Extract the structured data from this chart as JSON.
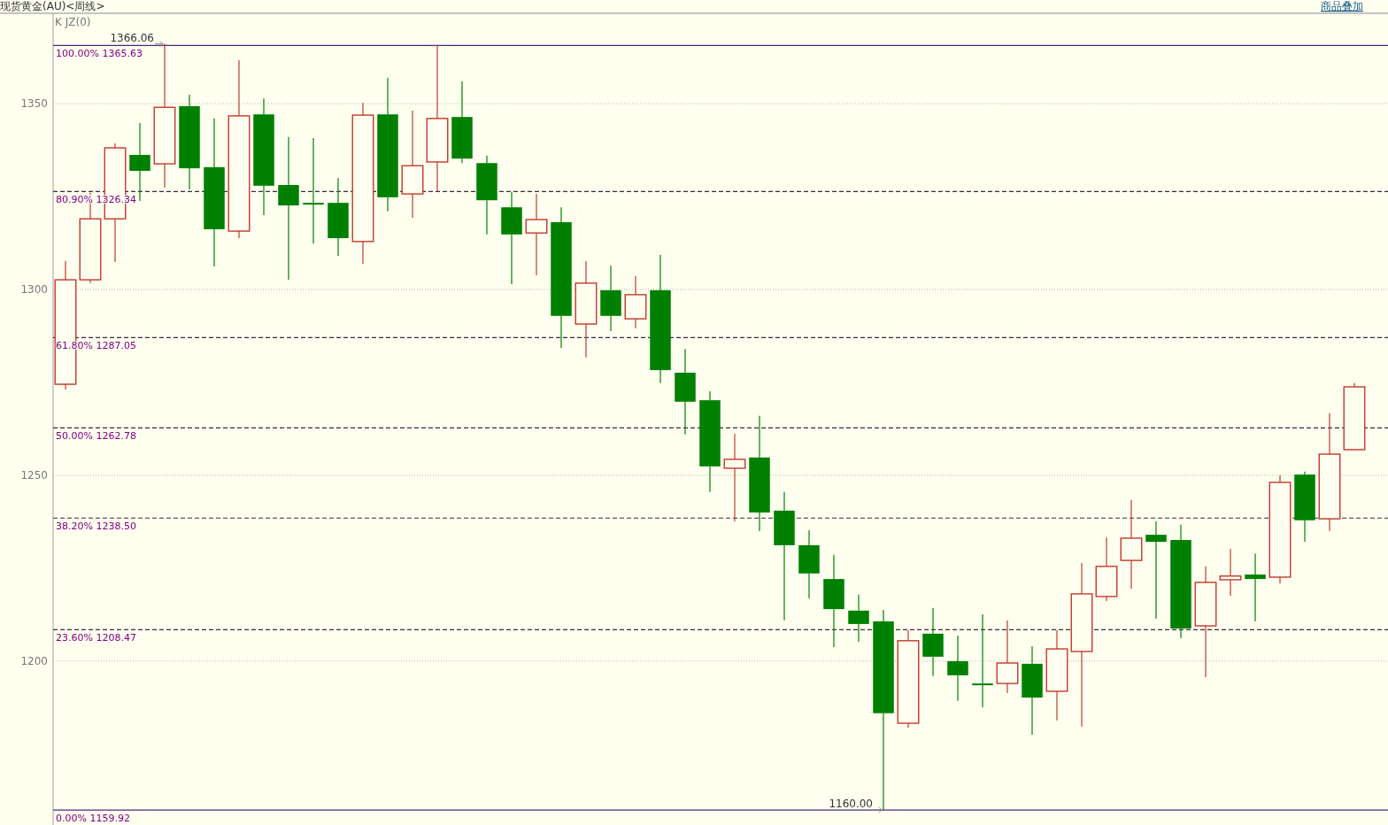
{
  "chart_data": {
    "type": "candlestick",
    "title": "现货黄金(AU)<周线>",
    "categories": [
      null,
      null,
      null,
      null,
      null,
      null,
      null,
      null,
      null,
      null,
      null,
      null,
      null,
      null,
      null,
      null,
      null,
      null,
      null,
      null,
      null,
      null,
      null,
      null,
      null,
      null,
      null,
      null,
      null,
      null,
      null,
      null,
      null,
      null,
      null,
      null,
      null,
      null,
      null,
      null,
      null,
      null,
      null,
      null,
      null,
      null,
      null,
      null,
      null,
      null,
      null,
      null,
      null
    ],
    "ohlc": [
      [
        1274.5,
        1307.6,
        1273.1,
        1302.6
      ],
      [
        1302.6,
        1326.0,
        1301.7,
        1319.0
      ],
      [
        1319.0,
        1339.3,
        1307.4,
        1338.1
      ],
      [
        1336.2,
        1344.8,
        1323.8,
        1331.9
      ],
      [
        1333.8,
        1366.06,
        1327.4,
        1349.0
      ],
      [
        1349.3,
        1352.4,
        1326.9,
        1332.6
      ],
      [
        1332.9,
        1346.0,
        1306.2,
        1316.2
      ],
      [
        1315.7,
        1361.7,
        1313.8,
        1346.7
      ],
      [
        1347.1,
        1351.4,
        1320.0,
        1327.9
      ],
      [
        1328.1,
        1341.0,
        1302.6,
        1322.6
      ],
      [
        1323.3,
        1340.7,
        1312.4,
        1322.9
      ],
      [
        1323.3,
        1330.0,
        1309.0,
        1313.8
      ],
      [
        1312.9,
        1350.2,
        1306.9,
        1346.9
      ],
      [
        1347.1,
        1356.9,
        1321.0,
        1324.8
      ],
      [
        1325.7,
        1348.1,
        1319.3,
        1333.3
      ],
      [
        1334.3,
        1365.7,
        1326.4,
        1346.0
      ],
      [
        1346.4,
        1356.0,
        1334.0,
        1335.2
      ],
      [
        1334.0,
        1336.0,
        1314.8,
        1324.0
      ],
      [
        1322.1,
        1326.2,
        1301.4,
        1314.8
      ],
      [
        1315.2,
        1325.7,
        1303.8,
        1318.8
      ],
      [
        1318.1,
        1322.1,
        1284.3,
        1292.9
      ],
      [
        1290.7,
        1307.6,
        1281.7,
        1301.7
      ],
      [
        1299.8,
        1306.4,
        1288.8,
        1292.9
      ],
      [
        1292.1,
        1303.6,
        1289.5,
        1298.6
      ],
      [
        1299.8,
        1309.3,
        1274.8,
        1278.3
      ],
      [
        1277.6,
        1284.0,
        1261.0,
        1269.8
      ],
      [
        1270.2,
        1272.6,
        1245.5,
        1252.4
      ],
      [
        1251.9,
        1261.2,
        1237.6,
        1254.3
      ],
      [
        1254.8,
        1266.0,
        1235.0,
        1240.0
      ],
      [
        1240.5,
        1245.5,
        1211.0,
        1231.2
      ],
      [
        1231.2,
        1235.2,
        1216.9,
        1223.6
      ],
      [
        1222.1,
        1228.6,
        1203.8,
        1214.0
      ],
      [
        1213.6,
        1217.9,
        1205.2,
        1210.0
      ],
      [
        1210.7,
        1213.8,
        1160.0,
        1186.0
      ],
      [
        1183.3,
        1208.3,
        1182.1,
        1205.5
      ],
      [
        1207.4,
        1214.3,
        1196.0,
        1201.2
      ],
      [
        1200.0,
        1206.9,
        1189.3,
        1196.2
      ],
      [
        1194.0,
        1212.6,
        1187.6,
        1193.6
      ],
      [
        1194.0,
        1211.0,
        1191.4,
        1199.5
      ],
      [
        1199.3,
        1204.0,
        1180.2,
        1190.2
      ],
      [
        1191.9,
        1208.3,
        1184.0,
        1203.3
      ],
      [
        1202.6,
        1226.4,
        1182.4,
        1218.1
      ],
      [
        1217.4,
        1233.3,
        1216.2,
        1225.5
      ],
      [
        1227.1,
        1243.3,
        1219.5,
        1233.1
      ],
      [
        1234.0,
        1237.6,
        1211.4,
        1232.1
      ],
      [
        1232.6,
        1236.7,
        1206.2,
        1208.8
      ],
      [
        1209.5,
        1225.5,
        1195.7,
        1221.2
      ],
      [
        1221.9,
        1230.2,
        1217.6,
        1222.9
      ],
      [
        1223.3,
        1229.0,
        1210.7,
        1222.1
      ],
      [
        1222.6,
        1250.0,
        1220.9,
        1248.1
      ],
      [
        1250.2,
        1251.0,
        1232.1,
        1237.9
      ],
      [
        1238.3,
        1266.7,
        1235.0,
        1255.7
      ],
      [
        1256.9,
        1274.8,
        1256.9,
        1273.8
      ]
    ],
    "colors": [
      "#c0392b",
      "#c0392b",
      "#c0392b",
      "#008000",
      "#c0392b",
      "#008000",
      "#008000",
      "#c0392b",
      "#008000",
      "#008000",
      "#008000",
      "#008000",
      "#c0392b",
      "#008000",
      "#c0392b",
      "#c0392b",
      "#008000",
      "#008000",
      "#008000",
      "#c0392b",
      "#008000",
      "#c0392b",
      "#008000",
      "#c0392b",
      "#008000",
      "#008000",
      "#008000",
      "#c0392b",
      "#008000",
      "#008000",
      "#008000",
      "#008000",
      "#008000",
      "#008000",
      "#c0392b",
      "#008000",
      "#008000",
      "#008000",
      "#c0392b",
      "#008000",
      "#c0392b",
      "#c0392b",
      "#c0392b",
      "#c0392b",
      "#008000",
      "#008000",
      "#c0392b",
      "#c0392b",
      "#008000",
      "#c0392b",
      "#008000",
      "#c0392b",
      "#c0392b"
    ],
    "ylim": [
      1156.4,
      1374.3
    ],
    "yticks": [
      1200,
      1250,
      1300,
      1350
    ],
    "grid": "y",
    "tick_labels": "y",
    "ref_lines": [
      {
        "axis": "y",
        "value": 1365.63,
        "label": "100.00% 1365.63",
        "color": "#4b2a7b",
        "line_style": "solid"
      },
      {
        "axis": "y",
        "value": 1326.34,
        "label": "80.90% 1326.34",
        "color": "#3a2a40",
        "line_style": "dashed"
      },
      {
        "axis": "y",
        "value": 1287.05,
        "label": "61.80% 1287.05",
        "color": "#3a2a40",
        "line_style": "dashed"
      },
      {
        "axis": "y",
        "value": 1262.78,
        "label": "50.00% 1262.78",
        "color": "#3a2a40",
        "line_style": "dashed"
      },
      {
        "axis": "y",
        "value": 1238.5,
        "label": "38.20% 1238.50",
        "color": "#3a2a40",
        "line_style": "dashed"
      },
      {
        "axis": "y",
        "value": 1208.47,
        "label": "23.60% 1208.47",
        "color": "#3a2a40",
        "line_style": "dashed"
      },
      {
        "axis": "y",
        "value": 1159.92,
        "label": "0.00% 1159.92",
        "color": "#4b2a7b",
        "line_style": "solid"
      }
    ],
    "annotations": [
      "K JZ(0)",
      "商品叠加",
      {
        "text": "1366.06",
        "y": 1366.06
      },
      {
        "text": "1160.00",
        "y": 1160.0
      }
    ]
  }
}
